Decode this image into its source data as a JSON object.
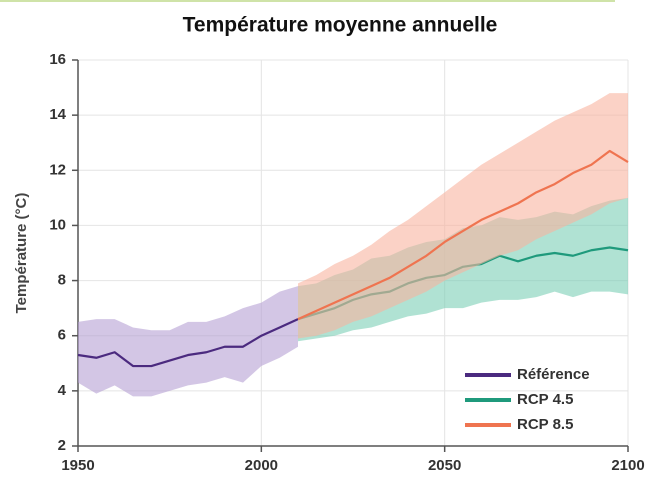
{
  "chart_data": {
    "type": "line",
    "title": "Température moyenne annuelle",
    "y_label": "Température (°C)",
    "x": [
      1950,
      1955,
      1960,
      1965,
      1970,
      1975,
      1980,
      1985,
      1990,
      1995,
      2000,
      2005,
      2010,
      2015,
      2020,
      2025,
      2030,
      2035,
      2040,
      2045,
      2050,
      2055,
      2060,
      2065,
      2070,
      2075,
      2080,
      2085,
      2090,
      2095,
      2100
    ],
    "series": [
      {
        "name": "Référence",
        "color": "#4b2a7f",
        "band_color": "#b5a0d4",
        "values": [
          5.3,
          5.2,
          5.4,
          4.9,
          4.9,
          5.1,
          5.3,
          5.4,
          5.6,
          5.6,
          6.0,
          6.3,
          6.6,
          null,
          null,
          null,
          null,
          null,
          null,
          null,
          null,
          null,
          null,
          null,
          null,
          null,
          null,
          null,
          null,
          null,
          null
        ],
        "lower": [
          4.3,
          3.9,
          4.2,
          3.8,
          3.8,
          4.0,
          4.2,
          4.3,
          4.5,
          4.3,
          4.9,
          5.2,
          5.6,
          null,
          null,
          null,
          null,
          null,
          null,
          null,
          null,
          null,
          null,
          null,
          null,
          null,
          null,
          null,
          null,
          null,
          null
        ],
        "upper": [
          6.5,
          6.6,
          6.6,
          6.3,
          6.2,
          6.2,
          6.5,
          6.5,
          6.7,
          7.0,
          7.2,
          7.6,
          7.8,
          null,
          null,
          null,
          null,
          null,
          null,
          null,
          null,
          null,
          null,
          null,
          null,
          null,
          null,
          null,
          null,
          null,
          null
        ]
      },
      {
        "name": "RCP 4.5",
        "color": "#1f9a7c",
        "band_color": "#7ccfb6",
        "values": [
          null,
          null,
          null,
          null,
          null,
          null,
          null,
          null,
          null,
          null,
          null,
          null,
          6.6,
          6.8,
          7.0,
          7.3,
          7.5,
          7.6,
          7.9,
          8.1,
          8.2,
          8.5,
          8.6,
          8.9,
          8.7,
          8.9,
          9.0,
          8.9,
          9.1,
          9.2,
          9.1
        ],
        "lower": [
          null,
          null,
          null,
          null,
          null,
          null,
          null,
          null,
          null,
          null,
          null,
          null,
          5.8,
          5.9,
          6.0,
          6.2,
          6.3,
          6.5,
          6.7,
          6.8,
          7.0,
          7.0,
          7.2,
          7.3,
          7.3,
          7.4,
          7.6,
          7.4,
          7.6,
          7.6,
          7.5
        ],
        "upper": [
          null,
          null,
          null,
          null,
          null,
          null,
          null,
          null,
          null,
          null,
          null,
          null,
          7.8,
          7.9,
          8.2,
          8.4,
          8.8,
          8.9,
          9.2,
          9.4,
          9.5,
          9.9,
          10.0,
          10.3,
          10.2,
          10.3,
          10.5,
          10.4,
          10.7,
          10.9,
          11.0
        ]
      },
      {
        "name": "RCP 8.5",
        "color": "#ef7450",
        "band_color": "#f8b4a0",
        "values": [
          null,
          null,
          null,
          null,
          null,
          null,
          null,
          null,
          null,
          null,
          null,
          null,
          6.6,
          6.9,
          7.2,
          7.5,
          7.8,
          8.1,
          8.5,
          8.9,
          9.4,
          9.8,
          10.2,
          10.5,
          10.8,
          11.2,
          11.5,
          11.9,
          12.2,
          12.7,
          12.3
        ],
        "lower": [
          null,
          null,
          null,
          null,
          null,
          null,
          null,
          null,
          null,
          null,
          null,
          null,
          5.9,
          6.0,
          6.2,
          6.5,
          6.7,
          7.0,
          7.3,
          7.6,
          8.0,
          8.3,
          8.6,
          8.9,
          9.1,
          9.5,
          9.8,
          10.1,
          10.4,
          10.8,
          11.0
        ],
        "upper": [
          null,
          null,
          null,
          null,
          null,
          null,
          null,
          null,
          null,
          null,
          null,
          null,
          7.9,
          8.2,
          8.6,
          8.9,
          9.3,
          9.8,
          10.2,
          10.7,
          11.2,
          11.7,
          12.2,
          12.6,
          13.0,
          13.4,
          13.8,
          14.1,
          14.4,
          14.8,
          14.8
        ]
      }
    ],
    "xlim": [
      1950,
      2100
    ],
    "xticks": [
      1950,
      2000,
      2050,
      2100
    ],
    "ylim": [
      2,
      16
    ],
    "yticks": [
      2,
      4,
      6,
      8,
      10,
      12,
      14,
      16
    ],
    "grid": true,
    "legend": "lower right"
  }
}
